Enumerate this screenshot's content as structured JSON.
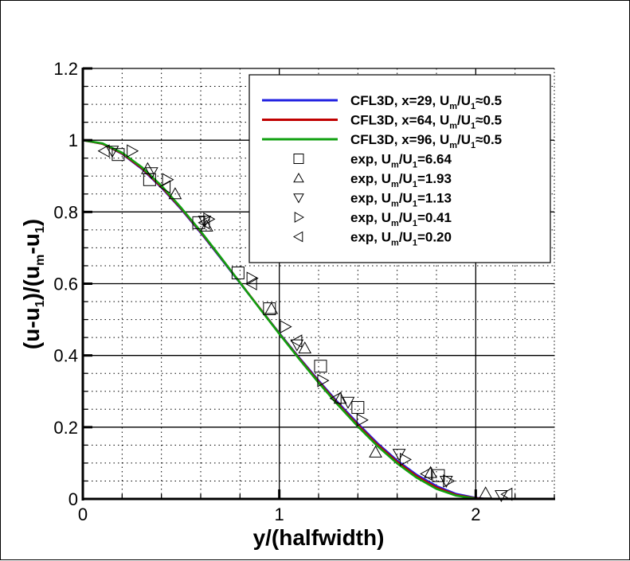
{
  "chart_data": {
    "type": "line",
    "title": "",
    "xlabel": "y/(halfwidth)",
    "ylabel": "(u-u1)/(um-u1)",
    "xlim": [
      0,
      2.4
    ],
    "ylim": [
      0,
      1.2
    ],
    "x_ticks": [
      "0",
      "1",
      "2"
    ],
    "y_ticks": [
      "0",
      "0.2",
      "0.4",
      "0.6",
      "0.8",
      "1",
      "1.2"
    ],
    "grid": true,
    "legend_position": "upper right",
    "series": [
      {
        "name": "CFL3D, x=29, Um/U1≈0.5",
        "kind": "line",
        "color": "#2020e0",
        "x": [
          0,
          0.1,
          0.2,
          0.3,
          0.4,
          0.5,
          0.6,
          0.7,
          0.8,
          0.9,
          1.0,
          1.1,
          1.2,
          1.3,
          1.4,
          1.5,
          1.6,
          1.7,
          1.8,
          1.9,
          2.0,
          2.05,
          2.1
        ],
        "y": [
          1.0,
          0.99,
          0.962,
          0.92,
          0.868,
          0.808,
          0.742,
          0.672,
          0.602,
          0.532,
          0.462,
          0.395,
          0.33,
          0.268,
          0.21,
          0.155,
          0.107,
          0.067,
          0.036,
          0.014,
          0.003,
          0.0,
          0.0
        ]
      },
      {
        "name": "CFL3D, x=64, Um/U1≈0.5",
        "kind": "line",
        "color": "#c00000",
        "x": [
          0,
          0.1,
          0.2,
          0.3,
          0.4,
          0.5,
          0.6,
          0.7,
          0.8,
          0.9,
          1.0,
          1.1,
          1.2,
          1.3,
          1.4,
          1.5,
          1.6,
          1.7,
          1.8,
          1.9,
          2.0,
          2.05,
          2.1
        ],
        "y": [
          1.0,
          0.99,
          0.963,
          0.922,
          0.87,
          0.81,
          0.744,
          0.674,
          0.603,
          0.532,
          0.461,
          0.393,
          0.327,
          0.264,
          0.206,
          0.151,
          0.103,
          0.063,
          0.032,
          0.011,
          0.002,
          0.0,
          0.0
        ]
      },
      {
        "name": "CFL3D, x=96, Um/U1≈0.5",
        "kind": "line",
        "color": "#10a010",
        "x": [
          0,
          0.1,
          0.2,
          0.3,
          0.4,
          0.5,
          0.6,
          0.7,
          0.8,
          0.9,
          1.0,
          1.1,
          1.2,
          1.3,
          1.4,
          1.5,
          1.6,
          1.7,
          1.8,
          1.9,
          2.0,
          2.05,
          2.1
        ],
        "y": [
          1.0,
          0.991,
          0.965,
          0.925,
          0.873,
          0.812,
          0.746,
          0.675,
          0.603,
          0.531,
          0.46,
          0.391,
          0.324,
          0.261,
          0.202,
          0.147,
          0.099,
          0.059,
          0.028,
          0.009,
          0.001,
          0.0,
          0.0
        ]
      },
      {
        "name": "exp, Um/U1=6.64",
        "kind": "marker",
        "marker": "square",
        "x": [
          0.18,
          0.34,
          0.59,
          0.79,
          0.95,
          1.21,
          1.4,
          1.81
        ],
        "y": [
          0.96,
          0.89,
          0.77,
          0.63,
          0.53,
          0.37,
          0.255,
          0.065
        ]
      },
      {
        "name": "exp, Um/U1=1.93",
        "kind": "marker",
        "marker": "triangle-up",
        "x": [
          0.33,
          0.47,
          0.63,
          0.96,
          1.13,
          1.31,
          1.49,
          1.77,
          2.05
        ],
        "y": [
          0.92,
          0.85,
          0.76,
          0.53,
          0.42,
          0.28,
          0.13,
          0.073,
          0.016
        ]
      },
      {
        "name": "exp, Um/U1=1.13",
        "kind": "marker",
        "marker": "triangle-down",
        "x": [
          0.15,
          0.35,
          0.62,
          1.09,
          1.35,
          1.61,
          1.85,
          2.13
        ],
        "y": [
          0.97,
          0.91,
          0.775,
          0.43,
          0.27,
          0.125,
          0.05,
          0.01
        ]
      },
      {
        "name": "exp, Um/U1=0.41",
        "kind": "marker",
        "marker": "triangle-right",
        "x": [
          0.25,
          0.43,
          0.64,
          0.86,
          1.03,
          1.22,
          1.42,
          1.64,
          1.86
        ],
        "y": [
          0.97,
          0.89,
          0.78,
          0.615,
          0.48,
          0.33,
          0.22,
          0.11,
          0.05
        ]
      },
      {
        "name": "exp, Um/U1=0.20",
        "kind": "marker",
        "marker": "triangle-left",
        "x": [
          0.11,
          0.42,
          0.62,
          0.86,
          1.09,
          1.29,
          1.75,
          2.16
        ],
        "y": [
          0.97,
          0.87,
          0.77,
          0.6,
          0.44,
          0.28,
          0.07,
          0.013
        ]
      }
    ]
  },
  "legend": {
    "entries": [
      {
        "pre": "CFL3D, x=29, U",
        "sub1": "m",
        "mid": "/U",
        "sub2": "1",
        "post": "≈0.5",
        "symbol": "line",
        "color": "#2020e0"
      },
      {
        "pre": "CFL3D, x=64, U",
        "sub1": "m",
        "mid": "/U",
        "sub2": "1",
        "post": "≈0.5",
        "symbol": "line",
        "color": "#c00000"
      },
      {
        "pre": "CFL3D, x=96, U",
        "sub1": "m",
        "mid": "/U",
        "sub2": "1",
        "post": "≈0.5",
        "symbol": "line",
        "color": "#10a010"
      },
      {
        "pre": "exp, U",
        "sub1": "m",
        "mid": "/U",
        "sub2": "1",
        "post": "=6.64",
        "symbol": "square"
      },
      {
        "pre": "exp, U",
        "sub1": "m",
        "mid": "/U",
        "sub2": "1",
        "post": "=1.93",
        "symbol": "triangle-up"
      },
      {
        "pre": "exp, U",
        "sub1": "m",
        "mid": "/U",
        "sub2": "1",
        "post": "=1.13",
        "symbol": "triangle-down"
      },
      {
        "pre": "exp, U",
        "sub1": "m",
        "mid": "/U",
        "sub2": "1",
        "post": "=0.41",
        "symbol": "triangle-right"
      },
      {
        "pre": "exp, U",
        "sub1": "m",
        "mid": "/U",
        "sub2": "1",
        "post": "=0.20",
        "symbol": "triangle-left"
      }
    ]
  },
  "axes": {
    "xlabel": "y/(halfwidth)",
    "ylabel_parts": {
      "a": "(u-u",
      "a_sub": "1",
      "b": ")/(u",
      "b_sub": "m",
      "c": "-u",
      "c_sub": "1",
      "d": ")"
    }
  }
}
